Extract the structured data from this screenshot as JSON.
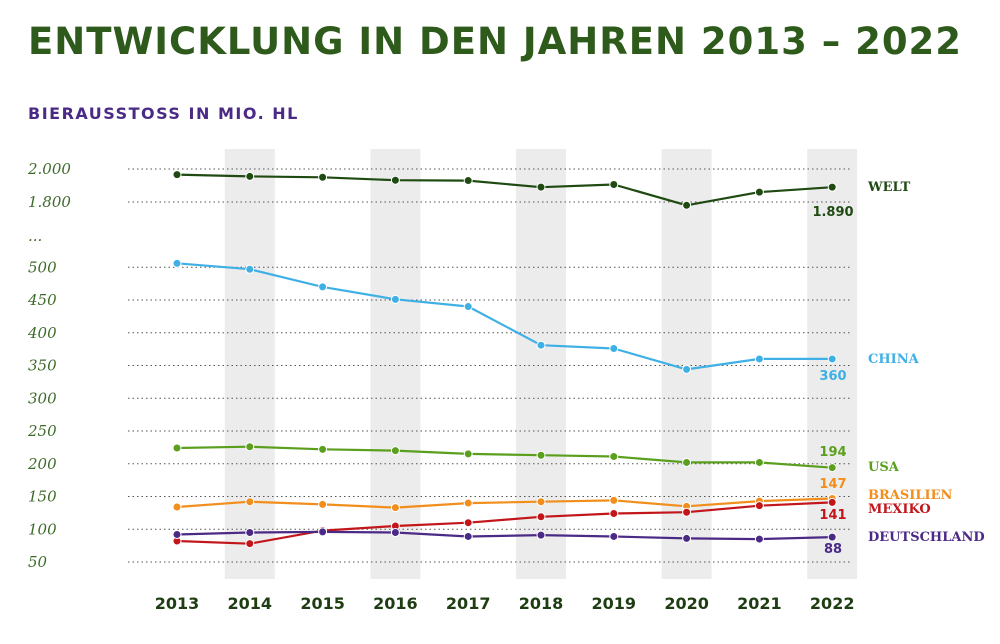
{
  "header": {
    "title": "ENTWICKLUNG IN DEN JAHREN 2013 – 2022",
    "subtitle": "BIERAUSSTOSS IN MIO. HL"
  },
  "chart_data": {
    "type": "line",
    "title": "ENTWICKLUNG IN DEN JAHREN 2013 – 2022",
    "subtitle": "BIERAUSSTOSS IN MIO. HL",
    "xlabel": "",
    "ylabel": "",
    "categories": [
      "2013",
      "2014",
      "2015",
      "2016",
      "2017",
      "2018",
      "2019",
      "2020",
      "2021",
      "2022"
    ],
    "y_axis_break": true,
    "y_ticks": [
      "2.000",
      "1.800",
      "...",
      "500",
      "450",
      "400",
      "350",
      "300",
      "250",
      "200",
      "150",
      "100",
      "50"
    ],
    "grid": "dotted-horizontal",
    "alternate_column_shading": true,
    "series": [
      {
        "name": "WELT",
        "color": "#1f4a12",
        "end_label": "1.890",
        "values": [
          1966,
          1955,
          1950,
          1932,
          1930,
          1890,
          1906,
          1780,
          1860,
          1890
        ]
      },
      {
        "name": "CHINA",
        "color": "#3fb0e5",
        "end_label": "360",
        "values": [
          506,
          497,
          470,
          451,
          440,
          381,
          376,
          344,
          360,
          360
        ]
      },
      {
        "name": "USA",
        "color": "#5b9f1e",
        "end_label": "194",
        "values": [
          224,
          226,
          222,
          220,
          215,
          213,
          211,
          202,
          202,
          194
        ]
      },
      {
        "name": "BRASILIEN",
        "color": "#f18e1c",
        "end_label": "147",
        "values": [
          134,
          142,
          138,
          133,
          140,
          142,
          144,
          135,
          143,
          147
        ]
      },
      {
        "name": "MEXIKO",
        "color": "#c2161a",
        "end_label": "141",
        "values": [
          82,
          78,
          98,
          105,
          110,
          119,
          124,
          126,
          136,
          141
        ]
      },
      {
        "name": "DEUTSCHLAND",
        "color": "#4b2a86",
        "end_label": "88",
        "values": [
          92,
          95,
          96,
          95,
          89,
          91,
          89,
          86,
          85,
          88
        ]
      }
    ]
  }
}
